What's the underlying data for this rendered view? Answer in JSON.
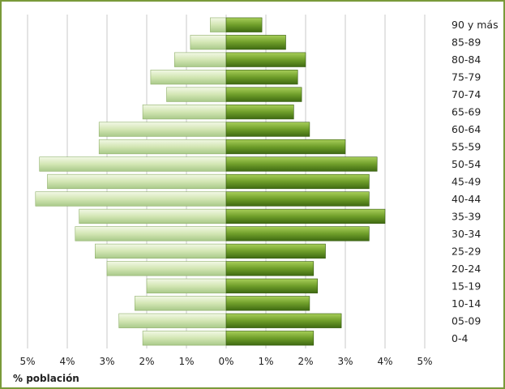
{
  "chart_data": {
    "type": "bar",
    "orientation": "horizontal",
    "layout": "population-pyramid",
    "categories": [
      "0-4",
      "05-09",
      "10-14",
      "15-19",
      "20-24",
      "25-29",
      "30-34",
      "35-39",
      "40-44",
      "45-49",
      "50-54",
      "55-59",
      "60-64",
      "65-69",
      "70-74",
      "75-79",
      "80-84",
      "85-89",
      "90 y más"
    ],
    "series": [
      {
        "side": "left",
        "values": [
          2.1,
          2.7,
          2.3,
          2.0,
          3.0,
          3.3,
          3.8,
          3.7,
          4.8,
          4.5,
          4.7,
          3.2,
          3.2,
          2.1,
          1.5,
          1.9,
          1.3,
          0.9,
          0.4
        ]
      },
      {
        "side": "right",
        "values": [
          2.2,
          2.9,
          2.1,
          2.3,
          2.2,
          2.5,
          3.6,
          4.0,
          3.6,
          3.6,
          3.8,
          3.0,
          2.1,
          1.7,
          1.9,
          1.8,
          2.0,
          1.5,
          0.9
        ]
      }
    ],
    "xlim": [
      -5,
      5
    ],
    "xticks": [
      "5%",
      "4%",
      "3%",
      "2%",
      "1%",
      "0%",
      "1%",
      "2%",
      "3%",
      "4%",
      "5%"
    ],
    "xlabel": "% población",
    "grid": true,
    "colors": {
      "left_bar": "#d3e6b4",
      "left_bar_dark": "#a9c98a",
      "right_bar": "#6f9e2a",
      "right_bar_dark": "#3f6a12",
      "frame": "#7a9a3a",
      "grid": "#c8c8c8"
    }
  }
}
